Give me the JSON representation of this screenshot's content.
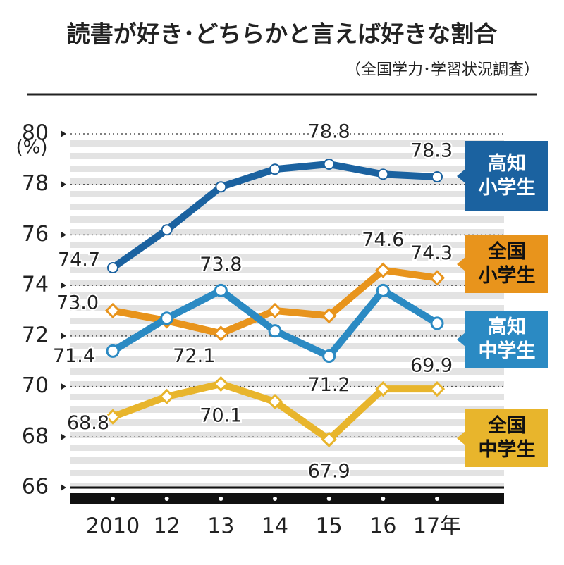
{
  "chart_data": {
    "type": "line",
    "title": "読書が好き･どちらかと言えば好きな割合",
    "subtitle": "（全国学力･学習状況調査）",
    "y_unit": "(%)",
    "categories": [
      "2010",
      "12",
      "13",
      "14",
      "15",
      "16",
      "17年"
    ],
    "ylim": [
      66,
      80
    ],
    "yticks": [
      66,
      68,
      70,
      72,
      74,
      76,
      78,
      80
    ],
    "grid": true,
    "series": [
      {
        "name": "高知\n小学生",
        "color": "#1b62a0",
        "marker": "circle-filled",
        "values": [
          74.7,
          76.2,
          77.9,
          78.6,
          78.8,
          78.4,
          78.3
        ],
        "value_labels": [
          "74.7",
          null,
          null,
          null,
          "78.8",
          null,
          "78.3"
        ]
      },
      {
        "name": "全国\n小学生",
        "color": "#e8941c",
        "marker": "diamond",
        "values": [
          73.0,
          72.6,
          72.1,
          73.0,
          72.8,
          74.6,
          74.3
        ],
        "value_labels": [
          "73.0",
          null,
          "72.1",
          null,
          null,
          "74.6",
          "74.3"
        ]
      },
      {
        "name": "高知\n中学生",
        "color": "#2b8ac3",
        "marker": "circle-open",
        "values": [
          71.4,
          72.7,
          73.8,
          72.2,
          71.2,
          73.8,
          72.5
        ],
        "value_labels": [
          "71.4",
          null,
          "73.8",
          null,
          "71.2",
          null,
          null
        ]
      },
      {
        "name": "全国\n中学生",
        "color": "#e8b52c",
        "marker": "diamond",
        "values": [
          68.8,
          69.6,
          70.1,
          69.4,
          67.9,
          69.9,
          69.9
        ],
        "value_labels": [
          "68.8",
          null,
          "70.1",
          null,
          "67.9",
          null,
          "69.9"
        ]
      }
    ]
  }
}
